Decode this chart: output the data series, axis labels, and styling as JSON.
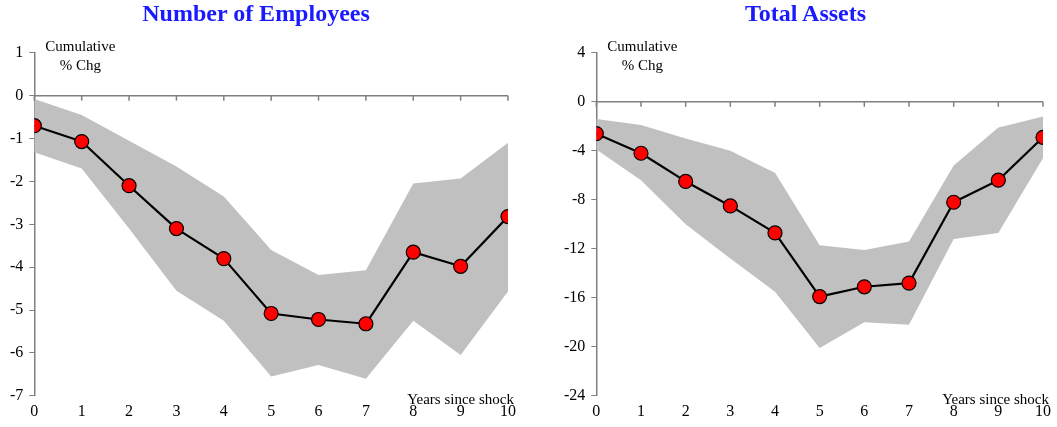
{
  "chart_data": [
    {
      "type": "line",
      "title": "Number of Employees",
      "xlabel": "Years since shock",
      "ylabel": "Cumulative % Chg",
      "x": [
        0,
        1,
        2,
        3,
        4,
        5,
        6,
        7,
        8,
        9,
        10
      ],
      "series": [
        {
          "color": "#ff0000",
          "values": [
            -0.7,
            -1.07,
            -2.1,
            -3.1,
            -3.8,
            -5.08,
            -5.22,
            -5.32,
            -3.65,
            -3.98,
            -2.82
          ],
          "lower": [
            -1.32,
            -1.7,
            -3.1,
            -4.55,
            -5.25,
            -6.55,
            -6.28,
            -6.6,
            -5.25,
            -6.05,
            -4.57
          ],
          "upper": [
            -0.08,
            -0.45,
            -1.05,
            -1.65,
            -2.35,
            -3.6,
            -4.18,
            -4.07,
            -2.05,
            -1.93,
            -1.1
          ]
        }
      ],
      "xlim": [
        0,
        10
      ],
      "xticks": [
        0,
        1,
        2,
        3,
        4,
        5,
        6,
        7,
        8,
        9,
        10
      ],
      "ylim": [
        -7,
        1
      ],
      "yticks": [
        -7,
        -6,
        -5,
        -4,
        -3,
        -2,
        -1,
        0,
        1
      ],
      "ref_lines": [
        {
          "axis": "y",
          "value": 0,
          "color": "#808080"
        }
      ],
      "grid": false,
      "legend": false,
      "marker": "circle",
      "line_style": "solid"
    },
    {
      "type": "line",
      "title": "Total Assets",
      "xlabel": "Years since shock",
      "ylabel": "Cumulative % Chg",
      "x": [
        0,
        1,
        2,
        3,
        4,
        5,
        6,
        7,
        8,
        9,
        10
      ],
      "series": [
        {
          "color": "#ff0000",
          "values": [
            -2.6,
            -4.2,
            -6.5,
            -8.5,
            -10.7,
            -15.9,
            -15.1,
            -14.8,
            -8.2,
            -6.4,
            -2.9
          ],
          "lower": [
            -3.9,
            -6.4,
            -10.0,
            -12.8,
            -15.5,
            -20.1,
            -18.0,
            -18.2,
            -11.2,
            -10.7,
            -4.6
          ],
          "upper": [
            -1.4,
            -1.9,
            -3.0,
            -4.0,
            -5.8,
            -11.7,
            -12.1,
            -11.4,
            -5.2,
            -2.1,
            -1.2
          ]
        }
      ],
      "xlim": [
        0,
        10
      ],
      "xticks": [
        0,
        1,
        2,
        3,
        4,
        5,
        6,
        7,
        8,
        9,
        10
      ],
      "ylim": [
        -24,
        4
      ],
      "yticks": [
        -24,
        -20,
        -16,
        -12,
        -8,
        -4,
        0,
        4
      ],
      "ref_lines": [
        {
          "axis": "y",
          "value": 0,
          "color": "#808080"
        }
      ],
      "grid": false,
      "legend": false,
      "marker": "circle",
      "line_style": "solid"
    }
  ]
}
